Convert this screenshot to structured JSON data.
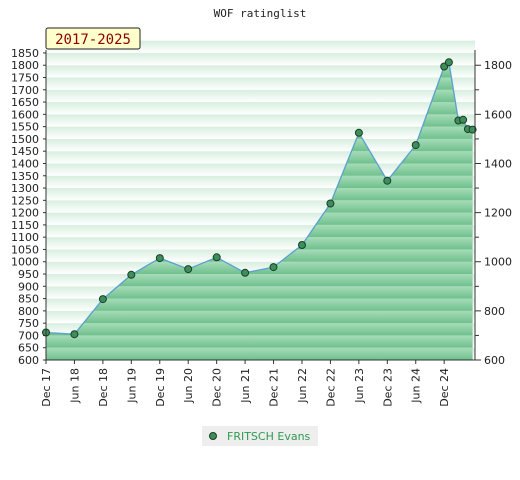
{
  "chart_data": {
    "type": "area",
    "title": "WOF ratinglist",
    "period_badge": "2017-2025",
    "x_tick_labels": [
      "Dec 17",
      "Jun 18",
      "Dec 18",
      "Jun 19",
      "Dec 19",
      "Jun 20",
      "Dec 20",
      "Jun 21",
      "Dec 21",
      "Jun 22",
      "Dec 22",
      "Jun 23",
      "Dec 23",
      "Jun 24",
      "Dec 24"
    ],
    "y_left": {
      "min": 600,
      "max": 1850,
      "step": 50
    },
    "y_right": {
      "min": 600,
      "max": 1800,
      "step": 200,
      "minor_step": 100
    },
    "grid": false,
    "legend_position": "bottom-center",
    "colors": {
      "line": "#5aa0d0",
      "marker_fill": "#3c8f5a",
      "marker_stroke": "#1e3d28",
      "band_dark": "#6fc08d",
      "band_light": "#eaf7ee"
    },
    "series": [
      {
        "name": "FRITSCH Evans",
        "points": [
          {
            "x": "Dec 17",
            "y": 712
          },
          {
            "x": "Jun 18",
            "y": 705
          },
          {
            "x": "Dec 18",
            "y": 848
          },
          {
            "x": "Jun 19",
            "y": 947
          },
          {
            "x": "Dec 19",
            "y": 1015
          },
          {
            "x": "Jun 20",
            "y": 970
          },
          {
            "x": "Dec 20",
            "y": 1018
          },
          {
            "x": "Jun 21",
            "y": 955
          },
          {
            "x": "Dec 21",
            "y": 978
          },
          {
            "x": "Jun 22",
            "y": 1068
          },
          {
            "x": "Dec 22",
            "y": 1237
          },
          {
            "x": "Jun 23",
            "y": 1525
          },
          {
            "x": "Dec 23",
            "y": 1330
          },
          {
            "x": "Jun 24",
            "y": 1475
          },
          {
            "x": "Dec 24",
            "y": 1795
          },
          {
            "x": "Dec 24 +1m",
            "y": 1812
          },
          {
            "x": "Mar 25",
            "y": 1575
          },
          {
            "x": "Apr 25",
            "y": 1578
          },
          {
            "x": "May 25",
            "y": 1540
          },
          {
            "x": "Jun 25",
            "y": 1538
          }
        ]
      }
    ]
  }
}
